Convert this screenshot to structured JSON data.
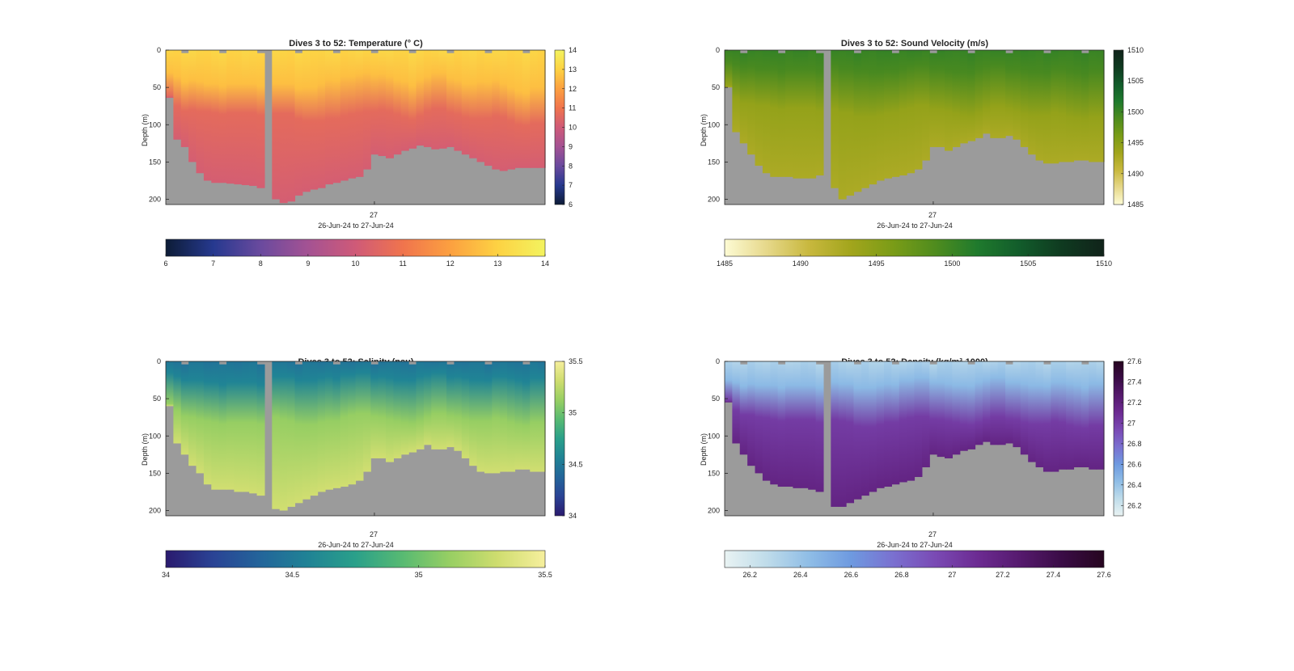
{
  "chart_data": [
    {
      "type": "heatmap",
      "title": "Dives 3 to 52: Temperature (° C)",
      "ylabel": "Depth (m)",
      "xlabel": "26-Jun-24 to 27-Jun-24",
      "x_ticks": [
        "27"
      ],
      "y_ticks": [
        0,
        50,
        100,
        150,
        200
      ],
      "ylim": [
        0,
        207
      ],
      "colorbar_range": [
        6,
        14
      ],
      "colorbar_ticks": [
        6,
        7,
        8,
        9,
        10,
        11,
        12,
        13,
        14
      ],
      "colormap": [
        "#0d1c36",
        "#26398f",
        "#6a4a9e",
        "#a45293",
        "#cf5a78",
        "#f0744d",
        "#fca040",
        "#fdd243",
        "#f3f35f"
      ],
      "profile_bottom_depth_m": [
        64,
        120,
        130,
        150,
        165,
        175,
        178,
        178,
        179,
        180,
        181,
        182,
        185,
        0,
        200,
        205,
        203,
        195,
        190,
        187,
        185,
        180,
        178,
        175,
        172,
        170,
        160,
        140,
        142,
        145,
        140,
        135,
        132,
        128,
        130,
        133,
        132,
        130,
        135,
        140,
        145,
        150,
        155,
        160,
        162,
        160,
        158,
        158,
        158,
        158
      ],
      "surface_layer_depth_m": [
        30,
        35,
        40,
        40,
        42,
        45,
        45,
        45,
        45,
        45,
        45,
        45,
        45,
        0,
        45,
        45,
        45,
        48,
        50,
        50,
        45,
        40,
        38,
        35,
        35,
        32,
        30,
        30,
        32,
        35,
        40,
        42,
        45,
        40,
        35,
        30,
        30,
        35,
        40,
        45,
        45,
        42,
        40,
        40,
        45,
        50,
        55,
        55,
        50,
        50
      ],
      "thermocline_depth_m": [
        70,
        75,
        80,
        80,
        82,
        82,
        84,
        84,
        84,
        84,
        84,
        84,
        85,
        0,
        85,
        85,
        85,
        90,
        95,
        95,
        95,
        92,
        90,
        88,
        86,
        84,
        82,
        80,
        80,
        82,
        86,
        90,
        92,
        88,
        82,
        78,
        78,
        82,
        86,
        90,
        92,
        92,
        90,
        88,
        90,
        95,
        100,
        100,
        98,
        98
      ],
      "surface_value": 13.2,
      "mid_value": 11.3,
      "deep_value": 10.2
    },
    {
      "type": "heatmap",
      "title": "Dives 3 to 52: Sound Velocity (m/s)",
      "ylabel": "Depth (m)",
      "xlabel": "26-Jun-24 to 27-Jun-24",
      "x_ticks": [
        "27"
      ],
      "y_ticks": [
        0,
        50,
        100,
        150,
        200
      ],
      "ylim": [
        0,
        207
      ],
      "colorbar_range": [
        1485,
        1510
      ],
      "colorbar_ticks": [
        1485,
        1490,
        1495,
        1500,
        1505,
        1510
      ],
      "colormap": [
        "#fdfbd4",
        "#e6d88a",
        "#c8b83e",
        "#a2a51c",
        "#7a9c17",
        "#4f8c1e",
        "#1f7a2d",
        "#125c2b",
        "#0f3a20",
        "#10231a"
      ],
      "profile_bottom_depth_m": [
        50,
        110,
        125,
        140,
        155,
        165,
        170,
        170,
        170,
        172,
        172,
        172,
        168,
        0,
        185,
        200,
        195,
        190,
        185,
        180,
        175,
        172,
        170,
        168,
        165,
        160,
        148,
        130,
        130,
        135,
        130,
        125,
        122,
        118,
        112,
        118,
        118,
        115,
        120,
        130,
        140,
        148,
        152,
        152,
        150,
        150,
        148,
        148,
        150,
        150
      ],
      "surface_layer_depth_m": [
        15,
        20,
        20,
        22,
        25,
        25,
        25,
        25,
        25,
        25,
        25,
        25,
        25,
        0,
        20,
        25,
        25,
        25,
        28,
        30,
        30,
        28,
        25,
        25,
        22,
        20,
        20,
        22,
        25,
        28,
        30,
        30,
        28,
        25,
        22,
        20,
        20,
        22,
        25,
        28,
        30,
        30,
        28,
        25,
        25,
        28,
        30,
        30,
        28,
        28
      ],
      "thermocline_depth_m": [
        60,
        65,
        70,
        72,
        75,
        75,
        78,
        78,
        78,
        78,
        78,
        78,
        80,
        0,
        80,
        85,
        85,
        88,
        90,
        90,
        88,
        85,
        82,
        80,
        78,
        75,
        75,
        78,
        80,
        82,
        85,
        88,
        88,
        85,
        80,
        76,
        76,
        78,
        82,
        86,
        88,
        88,
        86,
        84,
        86,
        90,
        92,
        92,
        90,
        90
      ],
      "surface_value": 1500.5,
      "mid_value": 1496.5,
      "deep_value": 1492.8
    },
    {
      "type": "heatmap",
      "title": "Dives 3 to 52: Salinity (psu)",
      "ylabel": "Depth (m)",
      "xlabel": "26-Jun-24 to 27-Jun-24",
      "x_ticks": [
        "27"
      ],
      "y_ticks": [
        0,
        50,
        100,
        150,
        200
      ],
      "ylim": [
        0,
        207
      ],
      "colorbar_range": [
        34,
        35.5
      ],
      "colorbar_ticks": [
        34,
        34.5,
        35,
        35.5
      ],
      "colorbar_tick_labels": [
        "34",
        "34.5",
        "35",
        "35.5"
      ],
      "colormap": [
        "#2a1a6e",
        "#2a4395",
        "#23659a",
        "#208395",
        "#2aa08a",
        "#58ba72",
        "#98cf63",
        "#cfdd6f",
        "#f6ef9d"
      ],
      "profile_bottom_depth_m": [
        60,
        110,
        125,
        140,
        150,
        165,
        172,
        172,
        172,
        175,
        175,
        177,
        180,
        0,
        198,
        200,
        195,
        190,
        185,
        180,
        175,
        172,
        170,
        168,
        165,
        160,
        148,
        130,
        130,
        135,
        130,
        125,
        122,
        118,
        112,
        118,
        118,
        115,
        120,
        130,
        140,
        148,
        150,
        150,
        148,
        148,
        145,
        145,
        148,
        148
      ],
      "surface_layer_depth_m": [
        15,
        20,
        22,
        25,
        25,
        28,
        28,
        28,
        28,
        28,
        28,
        28,
        28,
        0,
        20,
        20,
        20,
        22,
        25,
        25,
        22,
        20,
        20,
        18,
        18,
        15,
        15,
        18,
        20,
        22,
        25,
        25,
        22,
        20,
        18,
        15,
        15,
        18,
        20,
        22,
        25,
        25,
        22,
        20,
        20,
        22,
        25,
        25,
        22,
        22
      ],
      "thermocline_depth_m": [
        60,
        65,
        72,
        75,
        78,
        80,
        82,
        82,
        82,
        82,
        82,
        82,
        82,
        0,
        75,
        78,
        80,
        82,
        85,
        85,
        82,
        80,
        78,
        75,
        72,
        70,
        70,
        72,
        75,
        78,
        80,
        82,
        82,
        80,
        75,
        70,
        70,
        72,
        75,
        78,
        80,
        80,
        78,
        76,
        78,
        82,
        85,
        85,
        82,
        82
      ],
      "surface_value": 34.45,
      "mid_value": 34.85,
      "deep_value": 35.3
    },
    {
      "type": "heatmap",
      "title": "Dives 3 to 52: Density (kg/m³-1000)",
      "ylabel": "Depth (m)",
      "xlabel": "26-Jun-24 to 27-Jun-24",
      "x_ticks": [
        "27"
      ],
      "y_ticks": [
        0,
        50,
        100,
        150,
        200
      ],
      "ylim": [
        0,
        207
      ],
      "colorbar_range": [
        26.1,
        27.6
      ],
      "colorbar_ticks": [
        26.2,
        26.4,
        26.6,
        26.8,
        27,
        27.2,
        27.4,
        27.6
      ],
      "colorbar_tick_labels": [
        "26.2",
        "26.4",
        "26.6",
        "26.8",
        "27",
        "27.2",
        "27.4",
        "27.6"
      ],
      "colormap": [
        "#e9f3f3",
        "#bfdcea",
        "#8fbde6",
        "#6e9ae0",
        "#7a70d0",
        "#7a4ab4",
        "#6c2b92",
        "#561a6e",
        "#3a0c46",
        "#26051f"
      ],
      "profile_bottom_depth_m": [
        55,
        110,
        125,
        140,
        150,
        160,
        165,
        168,
        168,
        170,
        170,
        172,
        175,
        0,
        195,
        195,
        190,
        185,
        180,
        175,
        170,
        168,
        165,
        162,
        160,
        155,
        142,
        125,
        128,
        130,
        125,
        120,
        118,
        112,
        108,
        112,
        112,
        110,
        115,
        125,
        135,
        142,
        148,
        148,
        145,
        145,
        142,
        142,
        145,
        145
      ],
      "surface_layer_depth_m": [
        25,
        28,
        30,
        30,
        32,
        32,
        32,
        32,
        32,
        32,
        32,
        32,
        32,
        0,
        28,
        30,
        30,
        32,
        35,
        35,
        32,
        30,
        28,
        25,
        25,
        22,
        22,
        25,
        28,
        30,
        32,
        32,
        30,
        28,
        25,
        22,
        22,
        25,
        28,
        30,
        32,
        32,
        30,
        28,
        28,
        30,
        32,
        32,
        30,
        30
      ],
      "thermocline_depth_m": [
        60,
        65,
        70,
        72,
        75,
        76,
        78,
        78,
        78,
        78,
        78,
        78,
        80,
        0,
        78,
        80,
        82,
        85,
        88,
        88,
        85,
        82,
        80,
        78,
        76,
        74,
        74,
        76,
        78,
        80,
        82,
        84,
        84,
        82,
        78,
        74,
        74,
        76,
        78,
        82,
        84,
        84,
        82,
        80,
        82,
        86,
        88,
        88,
        86,
        86
      ],
      "surface_value": 26.3,
      "mid_value": 26.8,
      "deep_value": 27.15
    }
  ]
}
